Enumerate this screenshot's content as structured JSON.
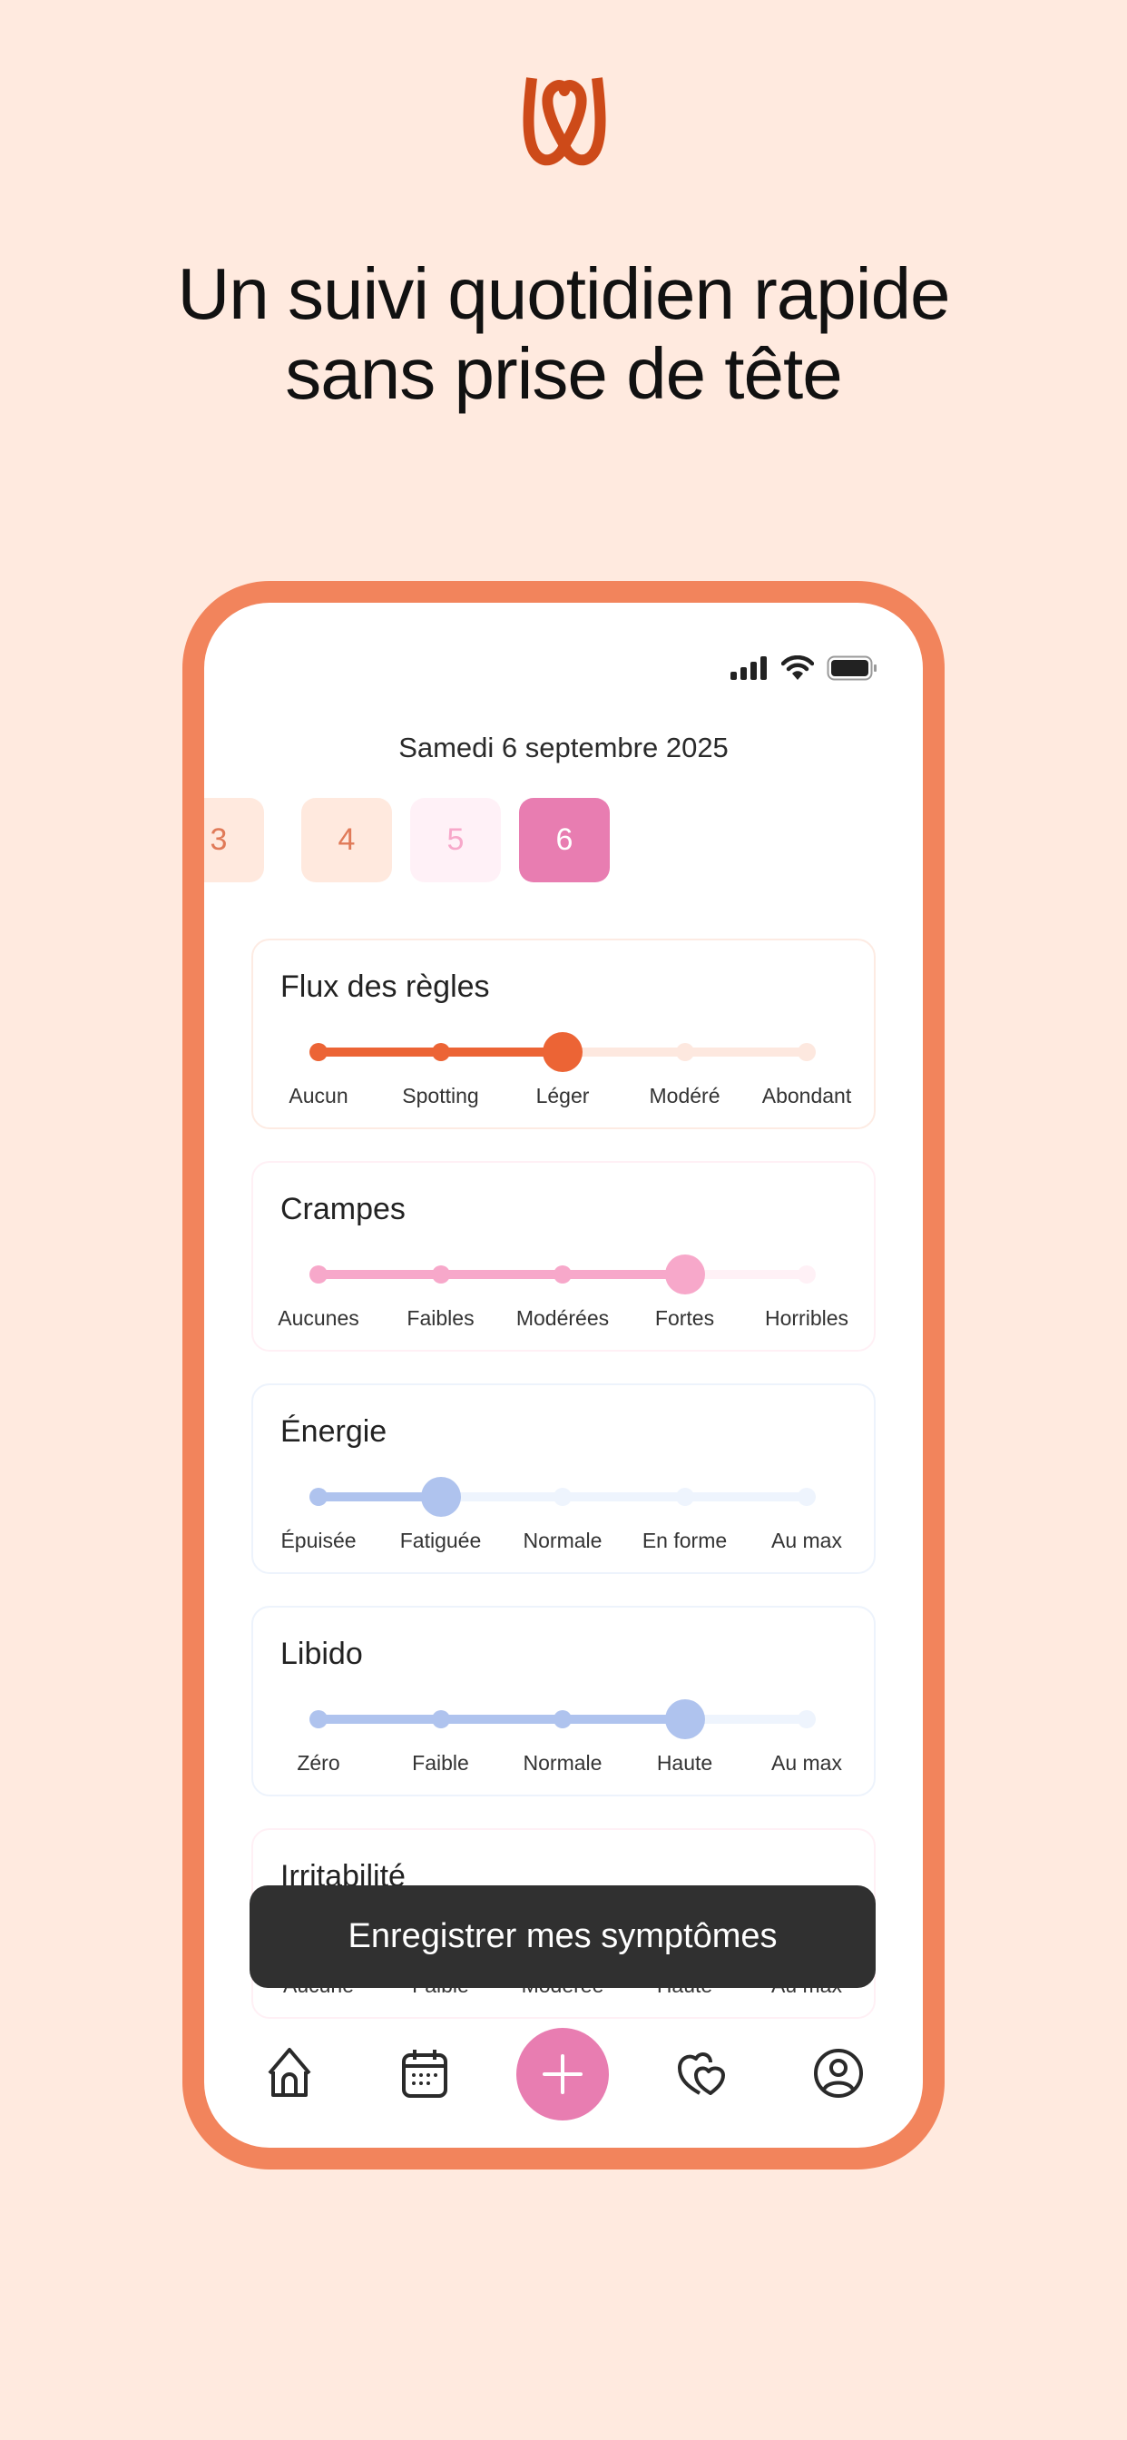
{
  "logo": {
    "icon": "heart-w-logo",
    "color": "#CD4A19"
  },
  "headline": {
    "line1": "Un suivi quotidien rapide",
    "line2": "sans prise de tête"
  },
  "status_bar": {
    "icons": [
      "signal-icon",
      "wifi-icon",
      "battery-icon"
    ]
  },
  "date_label": "Samedi 6 septembre 2025",
  "days": [
    {
      "label": "3",
      "bg": "#FFE9DE",
      "fg": "#E07A58"
    },
    {
      "label": "4",
      "bg": "#FFE9DE",
      "fg": "#E07A58"
    },
    {
      "label": "5",
      "bg": "#FFF1F7",
      "fg": "#F7A8CA"
    },
    {
      "label": "6",
      "bg": "#E87DB1",
      "fg": "#FFFFFF",
      "selected": true
    }
  ],
  "symptoms": [
    {
      "title": "Flux des règles",
      "options": [
        "Aucun",
        "Spotting",
        "Léger",
        "Modéré",
        "Abondant"
      ],
      "selected_index": 2,
      "color": "#EC6435",
      "light": "#FDE8DF",
      "border": "#FDEBE3"
    },
    {
      "title": "Crampes",
      "options": [
        "Aucunes",
        "Faibles",
        "Modérées",
        "Fortes",
        "Horribles"
      ],
      "selected_index": 3,
      "color": "#F7A8CA",
      "light": "#FFF1F6",
      "border": "#FFF0F5"
    },
    {
      "title": "Énergie",
      "options": [
        "Épuisée",
        "Fatiguée",
        "Normale",
        "En forme",
        "Au max"
      ],
      "selected_index": 1,
      "color": "#AFC3EE",
      "light": "#EEF4FD",
      "border": "#EDF3FC"
    },
    {
      "title": "Libido",
      "options": [
        "Zéro",
        "Faible",
        "Normale",
        "Haute",
        "Au max"
      ],
      "selected_index": 3,
      "color": "#AFC3EE",
      "light": "#EEF4FD",
      "border": "#EDF3FC"
    },
    {
      "title": "Irritabilité",
      "options": [
        "Aucune",
        "Faible",
        "Modérée",
        "Haute",
        "Au max"
      ],
      "selected_index": null,
      "color": "#F7A8CA",
      "light": "#FFF1F6",
      "border": "#FFF0F5"
    }
  ],
  "save_button": "Enregistrer mes symptômes",
  "nav": {
    "items": [
      "home-icon",
      "calendar-icon",
      "plus-icon",
      "hearts-icon",
      "profile-icon"
    ],
    "accent": "#E87DB1"
  }
}
